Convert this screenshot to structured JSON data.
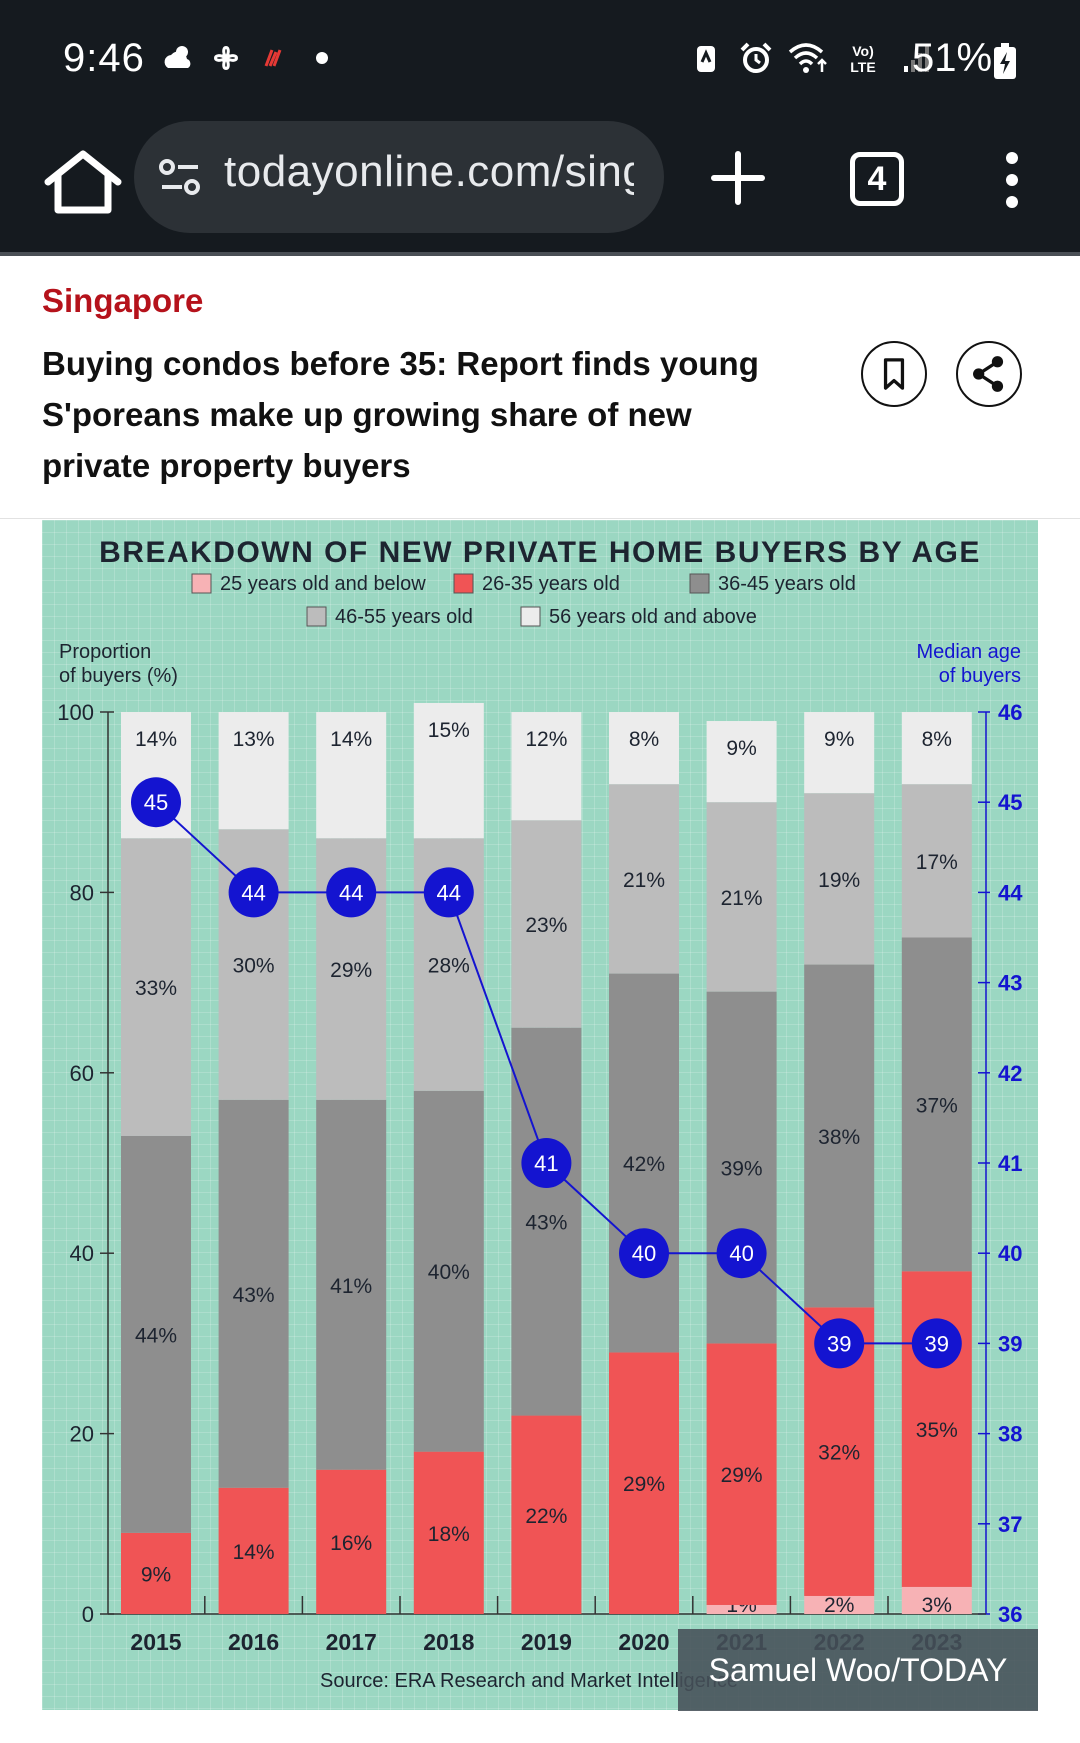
{
  "status_bar": {
    "time": "9:46",
    "battery": "51%",
    "left_icons": [
      "cloud-sun-icon",
      "pinwheel-icon",
      "app-notification-icon",
      "dot-icon"
    ],
    "right_icons": [
      "battery-saver-icon",
      "alarm-icon",
      "wifi-icon",
      "volte-icon",
      "signal-icon",
      "battery-icon"
    ],
    "volte_label": "Vo) LTE"
  },
  "browser": {
    "url": "todayonline.com/singapore",
    "tab_count": "4"
  },
  "article": {
    "category": "Singapore",
    "headline": "Buying condos before 35: Report finds young S'poreans make up growing share of new private property buyers"
  },
  "chart_data": {
    "type": "bar",
    "stacked": true,
    "title": "BREAKDOWN OF NEW PRIVATE HOME BUYERS BY AGE",
    "ylabel": "Proportion of buyers (%)",
    "ylabel_lines": [
      "Proportion",
      "of buyers (%)"
    ],
    "y2label_lines": [
      "Median age",
      "of buyers"
    ],
    "ylim": [
      0,
      100
    ],
    "yticks": [
      0,
      20,
      40,
      60,
      80,
      100
    ],
    "y2lim": [
      36,
      46
    ],
    "y2ticks": [
      36,
      37,
      38,
      39,
      40,
      41,
      42,
      43,
      44,
      45,
      46
    ],
    "categories": [
      "2015",
      "2016",
      "2017",
      "2018",
      "2019",
      "2020",
      "2021",
      "2022",
      "2023"
    ],
    "legend": "top",
    "series": [
      {
        "name": "25 years old and below",
        "color": "#f7b2b5",
        "values": [
          null,
          null,
          null,
          null,
          null,
          null,
          1,
          2,
          3
        ],
        "labels": [
          "",
          "",
          "",
          "",
          "",
          "",
          "1%",
          "2%",
          "3%"
        ]
      },
      {
        "name": "26-35 years old",
        "color": "#f05455",
        "values": [
          9,
          14,
          16,
          18,
          22,
          29,
          29,
          32,
          35
        ],
        "labels": [
          "9%",
          "14%",
          "16%",
          "18%",
          "22%",
          "29%",
          "29%",
          "32%",
          "35%"
        ]
      },
      {
        "name": "36-45 years old",
        "color": "#8e8e8e",
        "values": [
          44,
          43,
          41,
          40,
          43,
          42,
          39,
          38,
          37
        ],
        "labels": [
          "44%",
          "43%",
          "41%",
          "40%",
          "43%",
          "42%",
          "39%",
          "38%",
          "37%"
        ]
      },
      {
        "name": "46-55 years old",
        "color": "#bcbcbc",
        "values": [
          33,
          30,
          29,
          28,
          23,
          21,
          21,
          19,
          17
        ],
        "labels": [
          "33%",
          "30%",
          "29%",
          "28%",
          "23%",
          "21%",
          "21%",
          "19%",
          "17%"
        ]
      },
      {
        "name": "56 years old and above",
        "color": "#ececec",
        "values": [
          14,
          13,
          14,
          15,
          12,
          8,
          9,
          9,
          8
        ],
        "labels": [
          "14%",
          "13%",
          "14%",
          "15%",
          "12%",
          "8%",
          "9%",
          "9%",
          "8%"
        ]
      }
    ],
    "line": {
      "name": "Median age of buyers",
      "axis": "right",
      "color": "#1414d0",
      "values": [
        45,
        44,
        44,
        44,
        41,
        40,
        40,
        39,
        39
      ]
    },
    "source": "Source: ERA Research and Market Intelligence"
  },
  "photo_credit": "Samuel Woo/TODAY"
}
